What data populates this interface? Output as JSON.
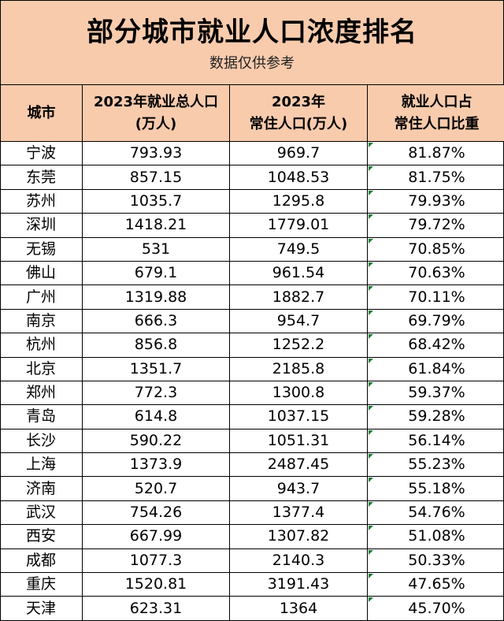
{
  "title": "部分城市就业人口浓度排名",
  "subtitle": "数据仅供参考",
  "headers": {
    "city": "城市",
    "employment_line1": "2023年就业总人口",
    "employment_line2": "(万人)",
    "resident_line1": "2023年",
    "resident_line2": "常住人口(万人)",
    "ratio_line1": "就业人口占",
    "ratio_line2": "常住人口比重"
  },
  "rows": [
    {
      "city": "宁波",
      "employment": "793.93",
      "resident": "969.7",
      "ratio": "81.87%"
    },
    {
      "city": "东莞",
      "employment": "857.15",
      "resident": "1048.53",
      "ratio": "81.75%"
    },
    {
      "city": "苏州",
      "employment": "1035.7",
      "resident": "1295.8",
      "ratio": "79.93%"
    },
    {
      "city": "深圳",
      "employment": "1418.21",
      "resident": "1779.01",
      "ratio": "79.72%"
    },
    {
      "city": "无锡",
      "employment": "531",
      "resident": "749.5",
      "ratio": "70.85%"
    },
    {
      "city": "佛山",
      "employment": "679.1",
      "resident": "961.54",
      "ratio": "70.63%"
    },
    {
      "city": "广州",
      "employment": "1319.88",
      "resident": "1882.7",
      "ratio": "70.11%"
    },
    {
      "city": "南京",
      "employment": "666.3",
      "resident": "954.7",
      "ratio": "69.79%"
    },
    {
      "city": "杭州",
      "employment": "856.8",
      "resident": "1252.2",
      "ratio": "68.42%"
    },
    {
      "city": "北京",
      "employment": "1351.7",
      "resident": "2185.8",
      "ratio": "61.84%"
    },
    {
      "city": "郑州",
      "employment": "772.3",
      "resident": "1300.8",
      "ratio": "59.37%"
    },
    {
      "city": "青岛",
      "employment": "614.8",
      "resident": "1037.15",
      "ratio": "59.28%"
    },
    {
      "city": "长沙",
      "employment": "590.22",
      "resident": "1051.31",
      "ratio": "56.14%"
    },
    {
      "city": "上海",
      "employment": "1373.9",
      "resident": "2487.45",
      "ratio": "55.23%"
    },
    {
      "city": "济南",
      "employment": "520.7",
      "resident": "943.7",
      "ratio": "55.18%"
    },
    {
      "city": "武汉",
      "employment": "754.26",
      "resident": "1377.4",
      "ratio": "54.76%"
    },
    {
      "city": "西安",
      "employment": "667.99",
      "resident": "1307.82",
      "ratio": "51.08%"
    },
    {
      "city": "成都",
      "employment": "1077.3",
      "resident": "2140.3",
      "ratio": "50.33%"
    },
    {
      "city": "重庆",
      "employment": "1520.81",
      "resident": "3191.43",
      "ratio": "47.65%"
    },
    {
      "city": "天津",
      "employment": "623.31",
      "resident": "1364",
      "ratio": "45.70%"
    }
  ],
  "colors": {
    "header_bg": "#f8cbad",
    "border": "#000000",
    "cell_marker": "#1f7a3a"
  }
}
